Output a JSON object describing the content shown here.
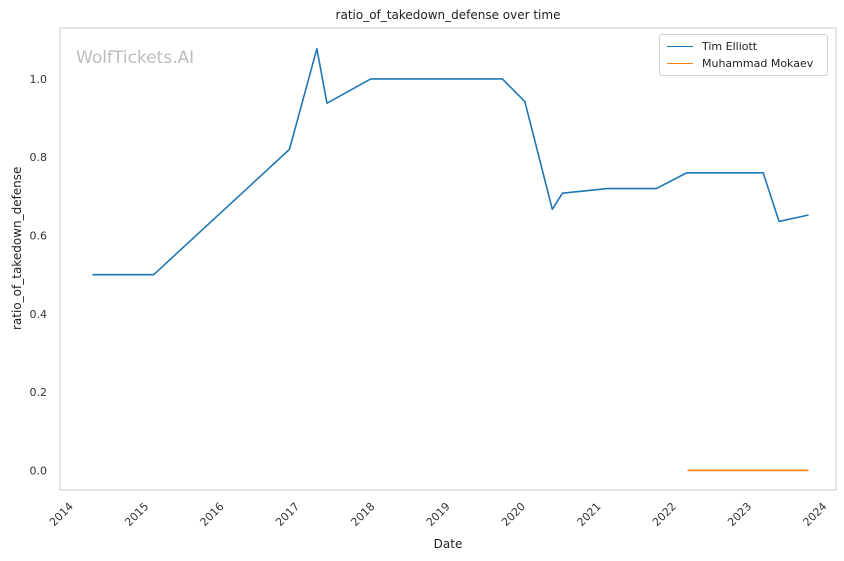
{
  "watermark": "WolfTickets.AI",
  "chart_data": {
    "type": "line",
    "title": "ratio_of_takedown_defense over time",
    "xlabel": "Date",
    "ylabel": "ratio_of_takedown_defense",
    "xlim": [
      "2013-11-17",
      "2024-03-05"
    ],
    "ylim": [
      -0.05,
      1.13
    ],
    "x_ticks": [
      "2014",
      "2015",
      "2016",
      "2017",
      "2018",
      "2019",
      "2020",
      "2021",
      "2022",
      "2023",
      "2024"
    ],
    "y_ticks": [
      "0.0",
      "0.2",
      "0.4",
      "0.6",
      "0.8",
      "1.0"
    ],
    "y_tick_values": [
      0.0,
      0.2,
      0.4,
      0.6,
      0.8,
      1.0
    ],
    "grid": true,
    "legend_position": "top-right",
    "series": [
      {
        "name": "Tim Elliott",
        "color": "#1f77b4",
        "points": [
          [
            "2014-04-26",
            0.5
          ],
          [
            "2015-02-14",
            0.5
          ],
          [
            "2016-12-03",
            0.82
          ],
          [
            "2017-04-15",
            1.077
          ],
          [
            "2017-06-03",
            0.938
          ],
          [
            "2018-01-01",
            1.0
          ],
          [
            "2019-10-01",
            1.0
          ],
          [
            "2020-01-18",
            0.942
          ],
          [
            "2020-05-30",
            0.667
          ],
          [
            "2020-07-18",
            0.708
          ],
          [
            "2021-02-20",
            0.72
          ],
          [
            "2021-10-16",
            0.72
          ],
          [
            "2022-03-12",
            0.76
          ],
          [
            "2023-03-18",
            0.76
          ],
          [
            "2023-06-03",
            0.636
          ],
          [
            "2023-10-21",
            0.652
          ]
        ]
      },
      {
        "name": "Muhammad Mokaev",
        "color": "#ff7f0e",
        "points": [
          [
            "2022-03-19",
            0.0
          ],
          [
            "2023-10-21",
            0.0
          ]
        ]
      }
    ]
  }
}
